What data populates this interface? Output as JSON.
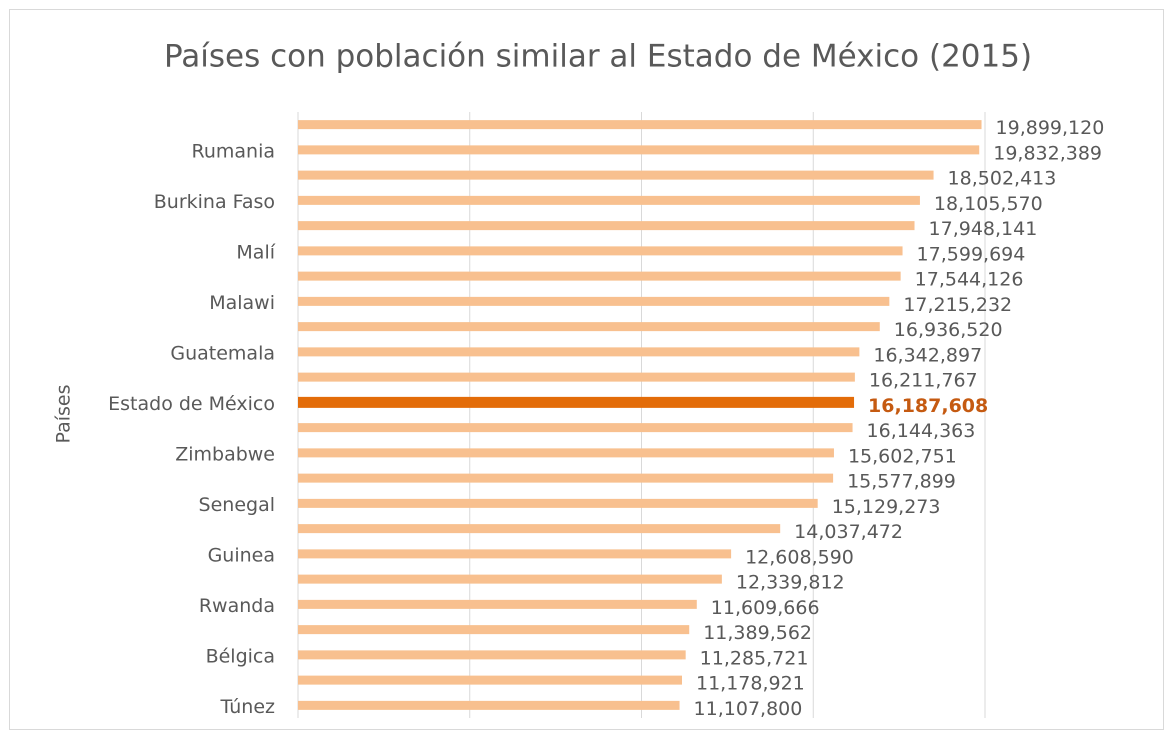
{
  "chart_data": {
    "type": "barh",
    "title": "Países con población similar al Estado de México (2015)",
    "y_label": "Países",
    "categories": [
      null,
      "Rumania",
      null,
      "Burkina Faso",
      null,
      "Malí",
      null,
      "Malawi",
      null,
      "Guatemala",
      null,
      "Estado de México",
      null,
      "Zimbabwe",
      null,
      "Senegal",
      null,
      "Guinea",
      null,
      "Rwanda",
      null,
      "Bélgica",
      null,
      "Túnez"
    ],
    "values": [
      19899120,
      19832389,
      18502413,
      18105570,
      17948141,
      17599694,
      17544126,
      17215232,
      16936520,
      16342897,
      16211767,
      16187608,
      16144363,
      15602751,
      15577899,
      15129273,
      14037472,
      12608590,
      12339812,
      11609666,
      11389562,
      11285721,
      11178921,
      11107800
    ],
    "value_labels": [
      "19,899,120",
      "19,832,389",
      "18,502,413",
      "18,105,570",
      "17,948,141",
      "17,599,694",
      "17,544,126",
      "17,215,232",
      "16,936,520",
      "16,342,897",
      "16,211,767",
      "16,187,608",
      "16,144,363",
      "15,602,751",
      "15,577,899",
      "15,129,273",
      "14,037,472",
      "12,608,590",
      "12,339,812",
      "11,609,666",
      "11,389,562",
      "11,285,721",
      "11,178,921",
      "11,107,800"
    ],
    "colors": [
      "#f8c08f",
      "#f8c08f",
      "#f8c08f",
      "#f8c08f",
      "#f8c08f",
      "#f8c08f",
      "#f8c08f",
      "#f8c08f",
      "#f8c08f",
      "#f8c08f",
      "#f8c08f",
      "#e36c09",
      "#f8c08f",
      "#f8c08f",
      "#f8c08f",
      "#f8c08f",
      "#f8c08f",
      "#f8c08f",
      "#f8c08f",
      "#f8c08f",
      "#f8c08f",
      "#f8c08f",
      "#f8c08f",
      "#f8c08f"
    ],
    "xlim": [
      0,
      20000000
    ],
    "xticks": [
      0,
      5000000,
      10000000,
      15000000,
      20000000
    ],
    "show_tick_labels": false,
    "grid": true
  }
}
